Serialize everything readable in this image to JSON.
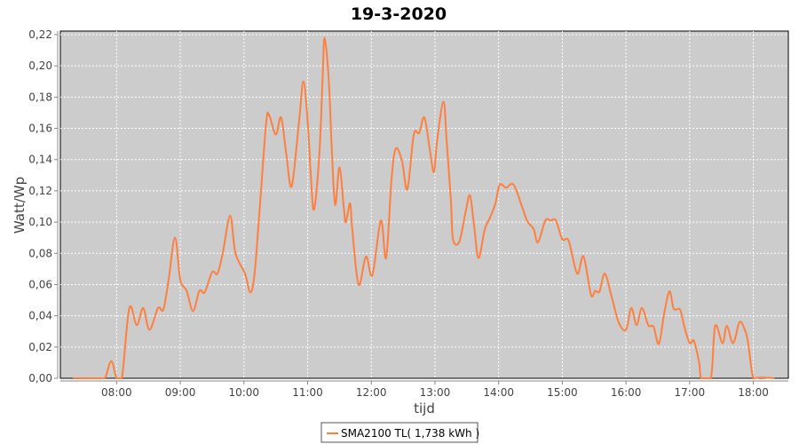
{
  "chart_data": {
    "type": "line",
    "title": "19-3-2020",
    "xlabel": "tijd",
    "ylabel": "Watt/Wp",
    "xlim": [
      "07:07",
      "18:33"
    ],
    "ylim": [
      0,
      0.22
    ],
    "x_ticks": [
      "08:00",
      "09:00",
      "10:00",
      "11:00",
      "12:00",
      "13:00",
      "14:00",
      "15:00",
      "16:00",
      "17:00",
      "18:00"
    ],
    "y_ticks": [
      "0,00",
      "0,02",
      "0,04",
      "0,06",
      "0,08",
      "0,10",
      "0,12",
      "0,14",
      "0,16",
      "0,18",
      "0,20",
      "0,22"
    ],
    "y_tick_values": [
      0,
      0.02,
      0.04,
      0.06,
      0.08,
      0.1,
      0.12,
      0.14,
      0.16,
      0.18,
      0.2,
      0.22
    ],
    "grid": true,
    "legend_position": "bottom",
    "background": "#cccccc",
    "series": [
      {
        "name": "SMA2100 TL( 1,738 kWh )",
        "color": "#ff7f3f",
        "points": [
          [
            "07:19",
            0
          ],
          [
            "07:44",
            0
          ],
          [
            "07:49",
            0
          ],
          [
            "07:55",
            0.011
          ],
          [
            "08:00",
            0
          ],
          [
            "08:05",
            0
          ],
          [
            "08:12",
            0.045
          ],
          [
            "08:19",
            0.034
          ],
          [
            "08:25",
            0.045
          ],
          [
            "08:31",
            0.031
          ],
          [
            "08:39",
            0.045
          ],
          [
            "08:44",
            0.044
          ],
          [
            "08:49",
            0.063
          ],
          [
            "08:55",
            0.09
          ],
          [
            "09:00",
            0.063
          ],
          [
            "09:06",
            0.056
          ],
          [
            "09:12",
            0.043
          ],
          [
            "09:18",
            0.056
          ],
          [
            "09:23",
            0.055
          ],
          [
            "09:30",
            0.068
          ],
          [
            "09:35",
            0.067
          ],
          [
            "09:40",
            0.08
          ],
          [
            "09:47",
            0.104
          ],
          [
            "09:52",
            0.08
          ],
          [
            "10:01",
            0.067
          ],
          [
            "10:06",
            0.055
          ],
          [
            "10:10",
            0.067
          ],
          [
            "10:15",
            0.11
          ],
          [
            "10:21",
            0.164
          ],
          [
            "10:24",
            0.168
          ],
          [
            "10:30",
            0.156
          ],
          [
            "10:35",
            0.167
          ],
          [
            "10:40",
            0.143
          ],
          [
            "10:45",
            0.123
          ],
          [
            "10:52",
            0.165
          ],
          [
            "10:56",
            0.19
          ],
          [
            "11:00",
            0.165
          ],
          [
            "11:03",
            0.13
          ],
          [
            "11:06",
            0.108
          ],
          [
            "11:11",
            0.143
          ],
          [
            "11:14",
            0.19
          ],
          [
            "11:16",
            0.218
          ],
          [
            "11:20",
            0.19
          ],
          [
            "11:23",
            0.143
          ],
          [
            "11:26",
            0.111
          ],
          [
            "11:30",
            0.135
          ],
          [
            "11:34",
            0.11
          ],
          [
            "11:36",
            0.1
          ],
          [
            "11:40",
            0.112
          ],
          [
            "11:42",
            0.096
          ],
          [
            "11:48",
            0.06
          ],
          [
            "11:55",
            0.078
          ],
          [
            "12:01",
            0.066
          ],
          [
            "12:09",
            0.101
          ],
          [
            "12:14",
            0.077
          ],
          [
            "12:19",
            0.127
          ],
          [
            "12:23",
            0.147
          ],
          [
            "12:29",
            0.139
          ],
          [
            "12:34",
            0.121
          ],
          [
            "12:40",
            0.156
          ],
          [
            "12:45",
            0.157
          ],
          [
            "12:50",
            0.167
          ],
          [
            "12:55",
            0.147
          ],
          [
            "12:59",
            0.132
          ],
          [
            "13:02",
            0.152
          ],
          [
            "13:08",
            0.177
          ],
          [
            "13:11",
            0.152
          ],
          [
            "13:15",
            0.114
          ],
          [
            "13:17",
            0.089
          ],
          [
            "13:23",
            0.0875
          ],
          [
            "13:29",
            0.107
          ],
          [
            "13:33",
            0.117
          ],
          [
            "13:37",
            0.097
          ],
          [
            "13:41",
            0.077
          ],
          [
            "13:47",
            0.0955
          ],
          [
            "13:52",
            0.103
          ],
          [
            "13:57",
            0.112
          ],
          [
            "14:01",
            0.124
          ],
          [
            "14:07",
            0.122
          ],
          [
            "14:14",
            0.124
          ],
          [
            "14:22",
            0.11
          ],
          [
            "14:27",
            0.1006
          ],
          [
            "14:33",
            0.0955
          ],
          [
            "14:37",
            0.087
          ],
          [
            "14:44",
            0.101
          ],
          [
            "14:49",
            0.101
          ],
          [
            "14:54",
            0.101
          ],
          [
            "15:00",
            0.089
          ],
          [
            "15:06",
            0.088
          ],
          [
            "15:14",
            0.067
          ],
          [
            "15:20",
            0.078
          ],
          [
            "15:27",
            0.0535
          ],
          [
            "15:31",
            0.056
          ],
          [
            "15:35",
            0.0555
          ],
          [
            "15:40",
            0.067
          ],
          [
            "15:46",
            0.0535
          ],
          [
            "15:53",
            0.036
          ],
          [
            "16:00",
            0.031
          ],
          [
            "16:05",
            0.045
          ],
          [
            "16:10",
            0.034
          ],
          [
            "16:15",
            0.045
          ],
          [
            "16:21",
            0.034
          ],
          [
            "16:26",
            0.033
          ],
          [
            "16:31",
            0.022
          ],
          [
            "16:36",
            0.0415
          ],
          [
            "16:41",
            0.0557
          ],
          [
            "16:45",
            0.0445
          ],
          [
            "16:51",
            0.044
          ],
          [
            "16:55",
            0.033
          ],
          [
            "17:00",
            0.0225
          ],
          [
            "17:04",
            0.024
          ],
          [
            "17:09",
            0.01
          ],
          [
            "17:11",
            0
          ],
          [
            "17:20",
            0
          ],
          [
            "17:24",
            0.0335
          ],
          [
            "17:31",
            0.0225
          ],
          [
            "17:35",
            0.0335
          ],
          [
            "17:41",
            0.0225
          ],
          [
            "17:47",
            0.036
          ],
          [
            "17:52",
            0.031
          ],
          [
            "17:55",
            0.023
          ],
          [
            "18:00",
            0
          ],
          [
            "18:07",
            0.0005
          ],
          [
            "18:20",
            0
          ]
        ]
      }
    ]
  }
}
